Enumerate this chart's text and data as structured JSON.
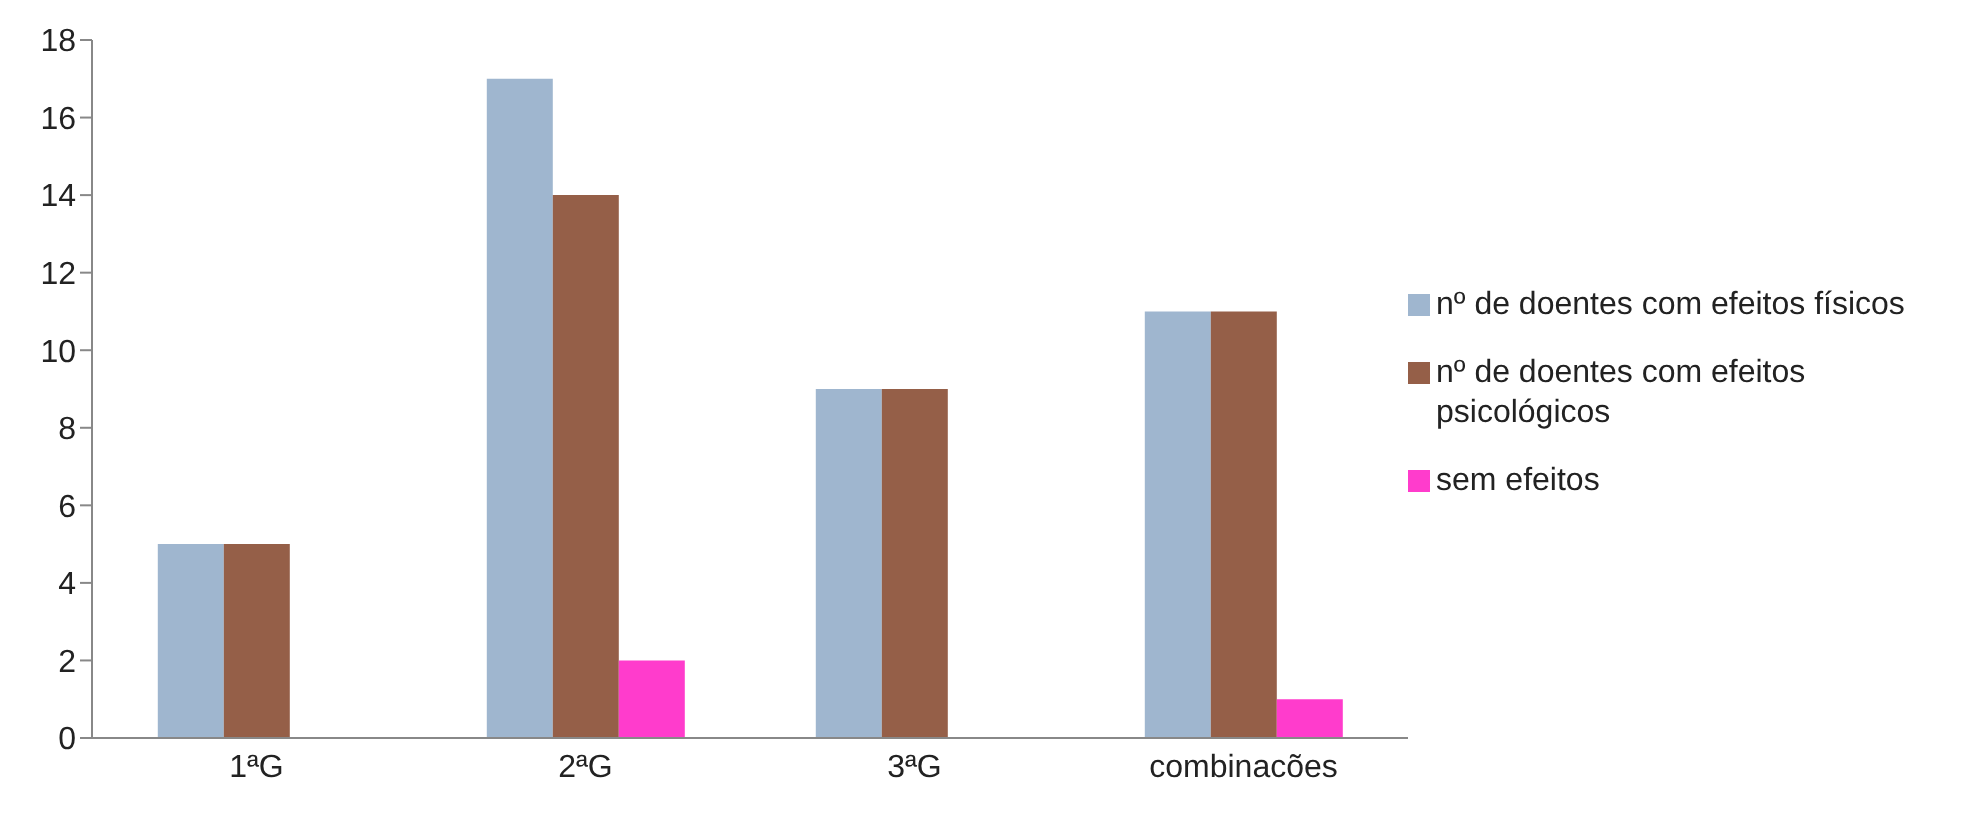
{
  "chart_data": {
    "type": "bar",
    "categories": [
      "1ªG",
      "2ªG",
      "3ªG",
      "combinacões"
    ],
    "series": [
      {
        "name": "nº de doentes com efeitos físicos",
        "color": "#9fb6cf",
        "values": [
          5,
          17,
          9,
          11
        ]
      },
      {
        "name": "nº de doentes com efeitos psicológicos",
        "color": "#955f48",
        "values": [
          5,
          14,
          9,
          11
        ]
      },
      {
        "name": "sem efeitos",
        "color": "#ff3ccc",
        "values": [
          0,
          2,
          0,
          1
        ]
      }
    ],
    "ylim": [
      0,
      18
    ],
    "yticks": [
      0,
      2,
      4,
      6,
      8,
      10,
      12,
      14,
      16,
      18
    ],
    "grid": false,
    "legend": "right"
  }
}
